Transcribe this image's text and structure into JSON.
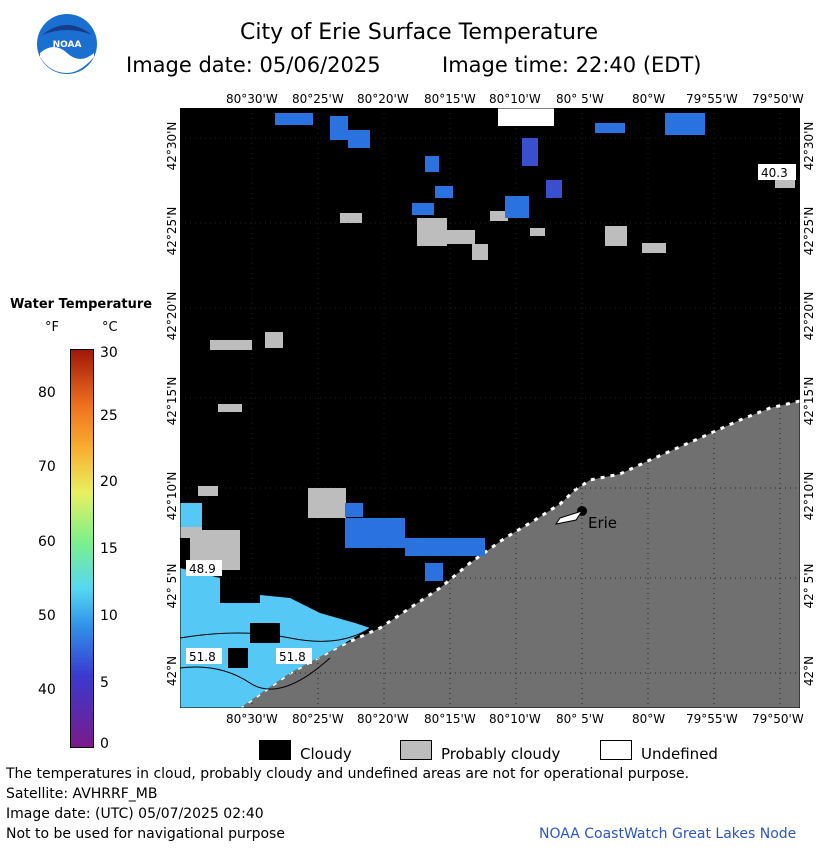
{
  "header": {
    "title": "City of Erie Surface Temperature",
    "image_date": "Image date: 05/06/2025",
    "image_time": "Image time: 22:40 (EDT)",
    "logo_text": "NOAA"
  },
  "map": {
    "top_longitude_labels": [
      "80°30'W",
      "80°25'W",
      "80°20'W",
      "80°15'W",
      "80°10'W",
      "80° 5'W",
      "80°W",
      "79°55'W",
      "79°50'W"
    ],
    "bottom_longitude_labels": [
      "80°30'W",
      "80°25'W",
      "80°20'W",
      "80°15'W",
      "80°10'W",
      "80° 5'W",
      "80°W",
      "79°55'W",
      "79°50'W"
    ],
    "latitude_labels": [
      "42°30'N",
      "42°25'N",
      "42°20'N",
      "42°15'N",
      "42°10'N",
      "42° 5'N",
      "42°N"
    ],
    "temperature_labels": [
      "40.3",
      "48.9",
      "51.8",
      "51.8"
    ],
    "city_label": "Erie",
    "colors": {
      "cloud": "#000000",
      "probably_cloudy": "#bdbdbd",
      "land": "#707070",
      "undefined": "#ffffff"
    }
  },
  "legend": {
    "title": "Water Temperature",
    "unit_f": "°F",
    "unit_c": "°C",
    "fahrenheit_ticks": [
      "80",
      "70",
      "60",
      "50",
      "40"
    ],
    "celsius_ticks": [
      "30",
      "25",
      "20",
      "15",
      "10",
      "5",
      "0"
    ]
  },
  "key": {
    "cloudy": "Cloudy",
    "probably_cloudy": "Probably cloudy",
    "undefined": "Undefined"
  },
  "footer": {
    "disclaimer": "The temperatures in cloud, probably cloudy and undefined areas are not for operational purpose.",
    "satellite": "Satellite: AVHRRF_MB",
    "utc_date": "Image date: (UTC) 05/07/2025  02:40",
    "nav_warning": "Not to be used for navigational purpose",
    "credit": "NOAA CoastWatch Great Lakes Node"
  }
}
